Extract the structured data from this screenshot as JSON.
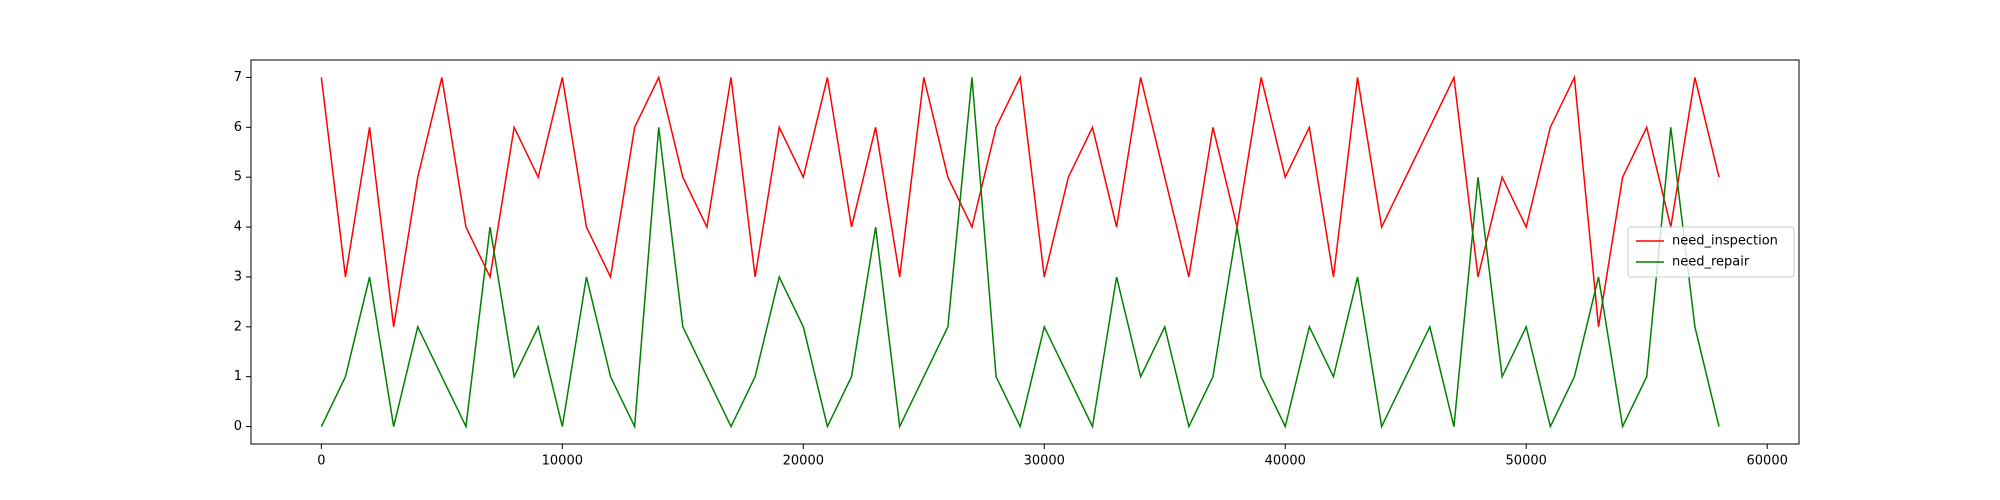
{
  "chart_data": {
    "type": "line",
    "x": [
      0,
      1000,
      2000,
      3000,
      4000,
      5000,
      6000,
      7000,
      8000,
      9000,
      10000,
      11000,
      12000,
      13000,
      14000,
      15000,
      16000,
      17000,
      18000,
      19000,
      20000,
      21000,
      22000,
      23000,
      24000,
      25000,
      26000,
      27000,
      28000,
      29000,
      30000,
      31000,
      32000,
      33000,
      34000,
      35000,
      36000,
      37000,
      38000,
      39000,
      40000,
      41000,
      42000,
      43000,
      44000,
      45000,
      46000,
      47000,
      48000,
      49000,
      50000,
      51000,
      52000,
      53000,
      54000,
      55000,
      56000,
      57000,
      58000
    ],
    "series": [
      {
        "name": "need_inspection",
        "color": "#ff0000",
        "values": [
          7,
          3,
          6,
          2,
          5,
          7,
          4,
          3,
          6,
          5,
          7,
          4,
          3,
          6,
          7,
          5,
          4,
          7,
          3,
          6,
          5,
          7,
          4,
          6,
          3,
          7,
          5,
          4,
          6,
          7,
          3,
          5,
          6,
          4,
          7,
          5,
          3,
          6,
          4,
          7,
          5,
          6,
          3,
          7,
          4,
          5,
          6,
          7,
          3,
          5,
          4,
          6,
          7,
          2,
          5,
          6,
          4,
          7,
          5
        ]
      },
      {
        "name": "need_repair",
        "color": "#008000",
        "values": [
          0,
          1,
          3,
          0,
          2,
          1,
          0,
          4,
          1,
          2,
          0,
          3,
          1,
          0,
          6,
          2,
          1,
          0,
          1,
          3,
          2,
          0,
          1,
          4,
          0,
          1,
          2,
          7,
          1,
          0,
          2,
          1,
          0,
          3,
          1,
          2,
          0,
          1,
          4,
          1,
          0,
          2,
          1,
          3,
          0,
          1,
          2,
          0,
          5,
          1,
          2,
          0,
          1,
          3,
          0,
          1,
          6,
          2,
          0
        ]
      }
    ],
    "xlim": [
      -2920,
      61320
    ],
    "xticks": [
      0,
      10000,
      20000,
      30000,
      40000,
      50000,
      60000
    ],
    "ylim": [
      -0.35,
      7.35
    ],
    "yticks": [
      0,
      1,
      2,
      3,
      4,
      5,
      6,
      7
    ],
    "legend": "center right"
  }
}
